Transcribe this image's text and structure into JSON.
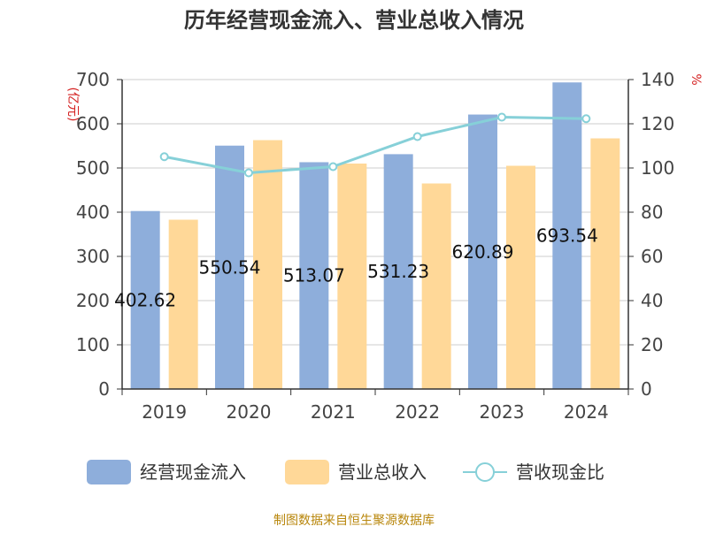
{
  "chart_data": {
    "type": "bar",
    "title": "历年经营现金流入、营业总收入情况",
    "categories": [
      "2019",
      "2020",
      "2021",
      "2022",
      "2023",
      "2024"
    ],
    "series": [
      {
        "name": "经营现金流入",
        "kind": "bar",
        "axis": "left",
        "color": "#8eaedb",
        "values": [
          402.62,
          550.54,
          513.07,
          531.23,
          620.89,
          693.54
        ],
        "data_labels": [
          "402.62",
          "550.54",
          "513.07",
          "531.23",
          "620.89",
          "693.54"
        ]
      },
      {
        "name": "营业总收入",
        "kind": "bar",
        "axis": "left",
        "color": "#ffd898",
        "values": [
          383,
          563,
          510,
          465,
          505,
          567
        ]
      },
      {
        "name": "营收现金比",
        "kind": "line",
        "axis": "right",
        "color": "#86d0d8",
        "values": [
          105.1,
          97.8,
          100.6,
          114.2,
          123.0,
          122.3
        ]
      }
    ],
    "y_left": {
      "unit": "(亿元)",
      "min": 0,
      "max": 700,
      "ticks": [
        0,
        100,
        200,
        300,
        400,
        500,
        600,
        700
      ]
    },
    "y_right": {
      "unit": "%",
      "min": 0,
      "max": 140,
      "ticks": [
        0,
        20,
        40,
        60,
        80,
        100,
        120,
        140
      ]
    },
    "grid": true,
    "legend": "bottom-center"
  },
  "source": "制图数据来自恒生聚源数据库"
}
